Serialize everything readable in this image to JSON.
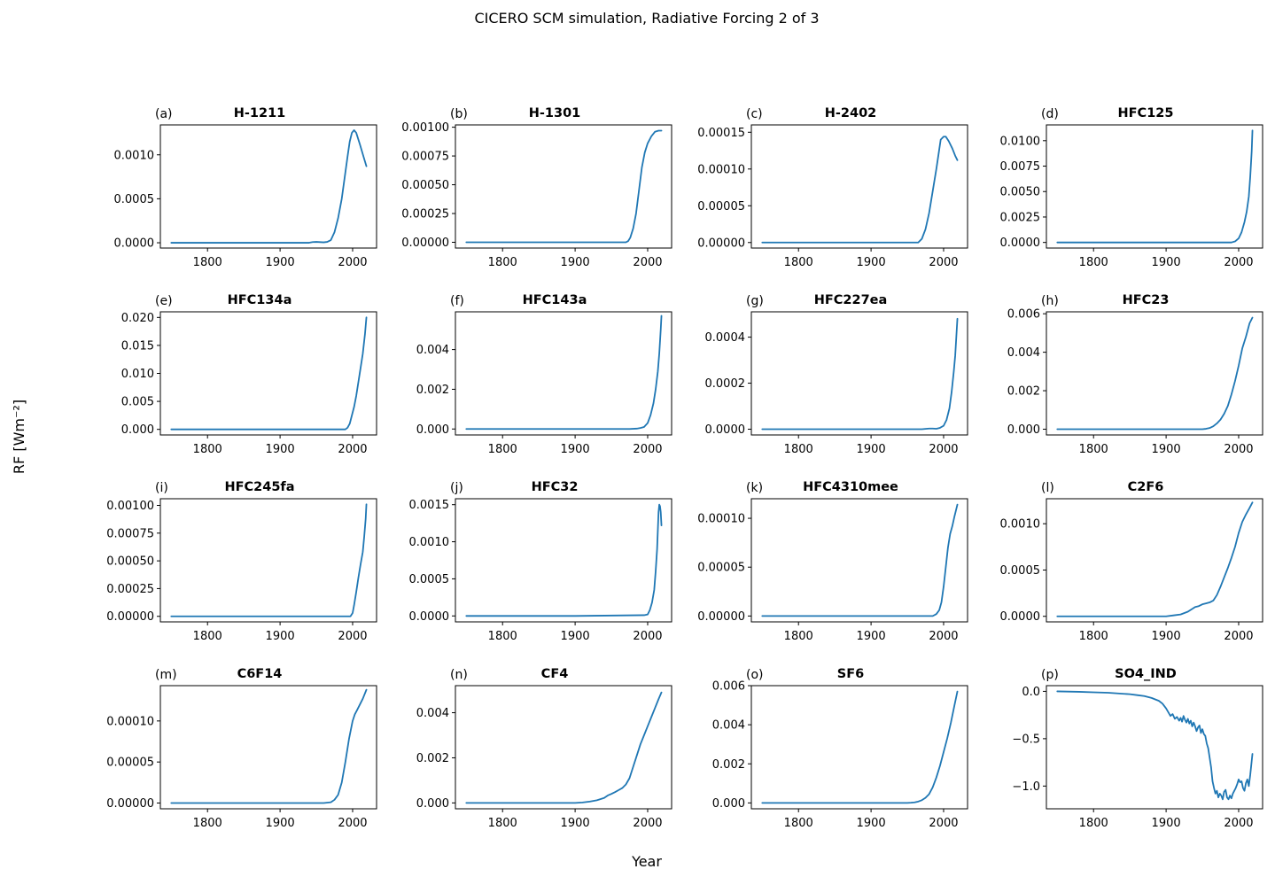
{
  "figure": {
    "title": "CICERO SCM simulation, Radiative Forcing 2 of 3",
    "xlabel": "Year",
    "ylabel": "RF [Wm⁻²]",
    "line_color": "#1f77b4"
  },
  "chart_data": [
    {
      "type": "line",
      "panel": "(a)",
      "title": "H-1211",
      "xlim": [
        1735,
        2033
      ],
      "ylim": [
        -6e-05,
        0.00134
      ],
      "x_ticks": [
        "1800",
        "1900",
        "2000"
      ],
      "y_ticks": [
        0,
        0.0005,
        0.001
      ],
      "y_tick_labels": [
        "0.0000",
        "0.0005",
        "0.0010"
      ],
      "x": [
        1750,
        1940,
        1945,
        1950,
        1960,
        1965,
        1970,
        1975,
        1980,
        1985,
        1990,
        1993,
        1996,
        1999,
        2002,
        2005,
        2010,
        2015,
        2019
      ],
      "y": [
        0,
        0,
        8e-06,
        1e-05,
        5e-06,
        1e-05,
        3e-05,
        0.00012,
        0.00028,
        0.0005,
        0.0008,
        0.00098,
        0.00115,
        0.00125,
        0.00128,
        0.00125,
        0.00112,
        0.00098,
        0.00087
      ]
    },
    {
      "type": "line",
      "panel": "(b)",
      "title": "H-1301",
      "xlim": [
        1735,
        2033
      ],
      "ylim": [
        -5e-05,
        0.00102
      ],
      "x_ticks": [
        "1800",
        "1900",
        "2000"
      ],
      "y_ticks": [
        0,
        0.00025,
        0.0005,
        0.00075,
        0.001
      ],
      "y_tick_labels": [
        "0.00000",
        "0.00025",
        "0.00050",
        "0.00075",
        "0.00100"
      ],
      "x": [
        1750,
        1970,
        1973,
        1976,
        1980,
        1984,
        1988,
        1992,
        1996,
        2000,
        2005,
        2010,
        2015,
        2019
      ],
      "y": [
        0,
        0,
        1e-05,
        4e-05,
        0.00012,
        0.00025,
        0.00045,
        0.00065,
        0.00078,
        0.00086,
        0.00092,
        0.00096,
        0.00097,
        0.00097
      ]
    },
    {
      "type": "line",
      "panel": "(c)",
      "title": "H-2402",
      "xlim": [
        1735,
        2033
      ],
      "ylim": [
        -7.5e-06,
        0.00016
      ],
      "x_ticks": [
        "1800",
        "1900",
        "2000"
      ],
      "y_ticks": [
        0,
        5e-05,
        0.0001,
        0.00015
      ],
      "y_tick_labels": [
        "0.00000",
        "0.00005",
        "0.00010",
        "0.00015"
      ],
      "x": [
        1750,
        1965,
        1970,
        1975,
        1980,
        1985,
        1990,
        1993,
        1996,
        2000,
        2003,
        2007,
        2012,
        2016,
        2019
      ],
      "y": [
        0,
        0,
        5e-06,
        1.8e-05,
        4e-05,
        7e-05,
        0.0001,
        0.00012,
        0.00014,
        0.000144,
        0.000144,
        0.000138,
        0.000128,
        0.000118,
        0.000112
      ]
    },
    {
      "type": "line",
      "panel": "(d)",
      "title": "HFC125",
      "xlim": [
        1735,
        2033
      ],
      "ylim": [
        -0.00055,
        0.01155
      ],
      "x_ticks": [
        "1800",
        "1900",
        "2000"
      ],
      "y_ticks": [
        0,
        0.0025,
        0.005,
        0.0075,
        0.01
      ],
      "y_tick_labels": [
        "0.0000",
        "0.0025",
        "0.0050",
        "0.0075",
        "0.0100"
      ],
      "x": [
        1750,
        1990,
        1995,
        2000,
        2004,
        2008,
        2011,
        2014,
        2016,
        2018,
        2019
      ],
      "y": [
        0,
        0,
        0.0001,
        0.0004,
        0.001,
        0.002,
        0.003,
        0.0045,
        0.0065,
        0.009,
        0.011
      ]
    },
    {
      "type": "line",
      "panel": "(e)",
      "title": "HFC134a",
      "xlim": [
        1735,
        2033
      ],
      "ylim": [
        -0.001,
        0.021
      ],
      "x_ticks": [
        "1800",
        "1900",
        "2000"
      ],
      "y_ticks": [
        0,
        0.005,
        0.01,
        0.015,
        0.02
      ],
      "y_tick_labels": [
        "0.000",
        "0.005",
        "0.010",
        "0.015",
        "0.020"
      ],
      "x": [
        1750,
        1990,
        1993,
        1996,
        1999,
        2002,
        2005,
        2008,
        2011,
        2014,
        2017,
        2019
      ],
      "y": [
        0,
        0,
        0.0003,
        0.001,
        0.0025,
        0.004,
        0.006,
        0.0085,
        0.011,
        0.0135,
        0.017,
        0.02
      ]
    },
    {
      "type": "line",
      "panel": "(f)",
      "title": "HFC143a",
      "xlim": [
        1735,
        2033
      ],
      "ylim": [
        -0.0003,
        0.0059
      ],
      "x_ticks": [
        "1800",
        "1900",
        "2000"
      ],
      "y_ticks": [
        0,
        0.002,
        0.004
      ],
      "y_tick_labels": [
        "0.000",
        "0.002",
        "0.004"
      ],
      "x": [
        1750,
        1975,
        1985,
        1990,
        1995,
        2000,
        2004,
        2008,
        2011,
        2014,
        2016,
        2018,
        2019
      ],
      "y": [
        0,
        0,
        2e-05,
        5e-05,
        0.0001,
        0.0003,
        0.0007,
        0.0013,
        0.002,
        0.0029,
        0.0038,
        0.005,
        0.0057
      ]
    },
    {
      "type": "line",
      "panel": "(g)",
      "title": "HFC227ea",
      "xlim": [
        1735,
        2033
      ],
      "ylim": [
        -2.5e-05,
        0.00051
      ],
      "x_ticks": [
        "1800",
        "1900",
        "2000"
      ],
      "y_ticks": [
        0,
        0.0002,
        0.0004
      ],
      "y_tick_labels": [
        "0.0000",
        "0.0002",
        "0.0004"
      ],
      "x": [
        1750,
        1970,
        1980,
        1985,
        1990,
        1995,
        2000,
        2004,
        2008,
        2011,
        2014,
        2016,
        2019
      ],
      "y": [
        0,
        0,
        3e-06,
        3e-06,
        2e-06,
        6e-06,
        1.5e-05,
        4e-05,
        9e-05,
        0.00016,
        0.00025,
        0.00032,
        0.00048
      ]
    },
    {
      "type": "line",
      "panel": "(h)",
      "title": "HFC23",
      "xlim": [
        1735,
        2033
      ],
      "ylim": [
        -0.0003,
        0.0061
      ],
      "x_ticks": [
        "1800",
        "1900",
        "2000"
      ],
      "y_ticks": [
        0,
        0.002,
        0.004,
        0.006
      ],
      "y_tick_labels": [
        "0.000",
        "0.002",
        "0.004",
        "0.006"
      ],
      "x": [
        1750,
        1950,
        1955,
        1960,
        1965,
        1970,
        1975,
        1980,
        1985,
        1990,
        1995,
        2000,
        2005,
        2010,
        2015,
        2019
      ],
      "y": [
        0,
        0,
        2e-05,
        6e-05,
        0.00015,
        0.0003,
        0.0005,
        0.0008,
        0.0012,
        0.0018,
        0.0025,
        0.0033,
        0.0042,
        0.0048,
        0.0055,
        0.0058
      ]
    },
    {
      "type": "line",
      "panel": "(i)",
      "title": "HFC245fa",
      "xlim": [
        1735,
        2033
      ],
      "ylim": [
        -5e-05,
        0.00106
      ],
      "x_ticks": [
        "1800",
        "1900",
        "2000"
      ],
      "y_ticks": [
        0,
        0.00025,
        0.0005,
        0.00075,
        0.001
      ],
      "y_tick_labels": [
        "0.00000",
        "0.00025",
        "0.00050",
        "0.00075",
        "0.00100"
      ],
      "x": [
        1750,
        1997,
        2000,
        2002,
        2005,
        2008,
        2011,
        2014,
        2016,
        2018,
        2019
      ],
      "y": [
        0,
        0,
        3e-05,
        0.0001,
        0.00022,
        0.00035,
        0.00047,
        0.00058,
        0.00072,
        0.00088,
        0.00101
      ]
    },
    {
      "type": "line",
      "panel": "(j)",
      "title": "HFC32",
      "xlim": [
        1735,
        2033
      ],
      "ylim": [
        -8e-05,
        0.00158
      ],
      "x_ticks": [
        "1800",
        "1900",
        "2000"
      ],
      "y_ticks": [
        0,
        0.0005,
        0.001,
        0.0015
      ],
      "y_tick_labels": [
        "0.0000",
        "0.0005",
        "0.0010",
        "0.0015"
      ],
      "x": [
        1750,
        1900,
        1995,
        2000,
        2003,
        2006,
        2009,
        2011,
        2013,
        2014,
        2015,
        2016,
        2017,
        2018,
        2019
      ],
      "y": [
        0,
        0,
        1e-05,
        2e-05,
        8e-05,
        0.00018,
        0.00035,
        0.0006,
        0.0009,
        0.00115,
        0.0014,
        0.0015,
        0.00148,
        0.0014,
        0.00122
      ]
    },
    {
      "type": "line",
      "panel": "(k)",
      "title": "HFC4310mee",
      "xlim": [
        1735,
        2033
      ],
      "ylim": [
        -6e-06,
        0.00012
      ],
      "x_ticks": [
        "1800",
        "1900",
        "2000"
      ],
      "y_ticks": [
        0,
        5e-05,
        0.0001
      ],
      "y_tick_labels": [
        "0.00000",
        "0.00005",
        "0.00010"
      ],
      "x": [
        1750,
        1985,
        1990,
        1994,
        1997,
        2000,
        2003,
        2006,
        2009,
        2012,
        2015,
        2019
      ],
      "y": [
        0,
        0,
        2e-06,
        6e-06,
        1.4e-05,
        3e-05,
        5e-05,
        7e-05,
        8.4e-05,
        9.2e-05,
        0.000102,
        0.000114
      ]
    },
    {
      "type": "line",
      "panel": "(l)",
      "title": "C2F6",
      "xlim": [
        1735,
        2033
      ],
      "ylim": [
        -6e-05,
        0.00127
      ],
      "x_ticks": [
        "1800",
        "1900",
        "2000"
      ],
      "y_ticks": [
        0,
        0.0005,
        0.001
      ],
      "y_tick_labels": [
        "0.0000",
        "0.0005",
        "0.0010"
      ],
      "x": [
        1750,
        1900,
        1910,
        1920,
        1930,
        1940,
        1945,
        1950,
        1955,
        1960,
        1965,
        1970,
        1975,
        1980,
        1985,
        1990,
        1995,
        2000,
        2005,
        2010,
        2015,
        2019
      ],
      "y": [
        0,
        0,
        1e-05,
        2e-05,
        5e-05,
        0.0001,
        0.00011,
        0.00013,
        0.00014,
        0.00015,
        0.00017,
        0.00023,
        0.00032,
        0.00042,
        0.00052,
        0.00063,
        0.00075,
        0.0009,
        0.00102,
        0.0011,
        0.00117,
        0.00123
      ]
    },
    {
      "type": "line",
      "panel": "(m)",
      "title": "C6F14",
      "xlim": [
        1735,
        2033
      ],
      "ylim": [
        -7e-06,
        0.000143
      ],
      "x_ticks": [
        "1800",
        "1900",
        "2000"
      ],
      "y_ticks": [
        0,
        5e-05,
        0.0001
      ],
      "y_tick_labels": [
        "0.00000",
        "0.00005",
        "0.00010"
      ],
      "x": [
        1750,
        1960,
        1970,
        1975,
        1980,
        1985,
        1990,
        1995,
        2000,
        2003,
        2006,
        2010,
        2014,
        2019
      ],
      "y": [
        0,
        0,
        1e-06,
        4e-06,
        1e-05,
        2.5e-05,
        5e-05,
        7.8e-05,
        0.0001,
        0.000108,
        0.000113,
        0.00012,
        0.000127,
        0.000138
      ]
    },
    {
      "type": "line",
      "panel": "(n)",
      "title": "CF4",
      "xlim": [
        1735,
        2033
      ],
      "ylim": [
        -0.00026,
        0.0052
      ],
      "x_ticks": [
        "1800",
        "1900",
        "2000"
      ],
      "y_ticks": [
        0,
        0.002,
        0.004
      ],
      "y_tick_labels": [
        "0.000",
        "0.002",
        "0.004"
      ],
      "x": [
        1750,
        1900,
        1910,
        1920,
        1930,
        1940,
        1945,
        1950,
        1955,
        1960,
        1965,
        1970,
        1975,
        1980,
        1985,
        1990,
        1995,
        2000,
        2005,
        2010,
        2015,
        2019
      ],
      "y": [
        0,
        0,
        2e-05,
        6e-05,
        0.00012,
        0.00022,
        0.00033,
        0.0004,
        0.00048,
        0.00057,
        0.00066,
        0.00082,
        0.0011,
        0.0016,
        0.0021,
        0.0026,
        0.003,
        0.0034,
        0.0038,
        0.0042,
        0.0046,
        0.0049
      ]
    },
    {
      "type": "line",
      "panel": "(o)",
      "title": "SF6",
      "xlim": [
        1735,
        2033
      ],
      "ylim": [
        -0.0003,
        0.006
      ],
      "x_ticks": [
        "1800",
        "1900",
        "2000"
      ],
      "y_ticks": [
        0,
        0.002,
        0.004,
        0.006
      ],
      "y_tick_labels": [
        "0.000",
        "0.002",
        "0.004",
        "0.006"
      ],
      "x": [
        1750,
        1950,
        1955,
        1960,
        1965,
        1970,
        1975,
        1980,
        1985,
        1990,
        1995,
        2000,
        2005,
        2010,
        2015,
        2019
      ],
      "y": [
        0,
        0,
        1e-05,
        3e-05,
        7e-05,
        0.00014,
        0.00026,
        0.00045,
        0.0008,
        0.0013,
        0.0019,
        0.0026,
        0.0033,
        0.0041,
        0.005,
        0.0057
      ]
    },
    {
      "type": "line",
      "panel": "(p)",
      "title": "SO4_IND",
      "xlim": [
        1735,
        2033
      ],
      "ylim": [
        -1.24,
        0.06
      ],
      "x_ticks": [
        "1800",
        "1900",
        "2000"
      ],
      "y_ticks": [
        0,
        -0.5,
        -1.0
      ],
      "y_tick_labels": [
        "0.0",
        "−0.5",
        "−1.0"
      ],
      "x": [
        1750,
        1780,
        1800,
        1820,
        1840,
        1850,
        1860,
        1870,
        1880,
        1885,
        1890,
        1895,
        1900,
        1903,
        1906,
        1909,
        1912,
        1915,
        1918,
        1920,
        1922,
        1924,
        1926,
        1928,
        1930,
        1932,
        1934,
        1936,
        1938,
        1940,
        1942,
        1944,
        1946,
        1948,
        1950,
        1952,
        1954,
        1956,
        1958,
        1960,
        1962,
        1964,
        1966,
        1968,
        1970,
        1972,
        1974,
        1976,
        1978,
        1980,
        1982,
        1984,
        1986,
        1988,
        1990,
        1992,
        1994,
        1996,
        1998,
        2000,
        2002,
        2004,
        2006,
        2008,
        2010,
        2012,
        2014,
        2016,
        2019
      ],
      "y": [
        0,
        -0.005,
        -0.01,
        -0.015,
        -0.025,
        -0.03,
        -0.04,
        -0.05,
        -0.07,
        -0.085,
        -0.1,
        -0.13,
        -0.18,
        -0.22,
        -0.26,
        -0.24,
        -0.29,
        -0.27,
        -0.31,
        -0.28,
        -0.32,
        -0.26,
        -0.3,
        -0.33,
        -0.29,
        -0.34,
        -0.31,
        -0.37,
        -0.33,
        -0.37,
        -0.42,
        -0.38,
        -0.36,
        -0.44,
        -0.4,
        -0.45,
        -0.47,
        -0.55,
        -0.6,
        -0.7,
        -0.8,
        -0.95,
        -1.02,
        -1.08,
        -1.05,
        -1.12,
        -1.08,
        -1.1,
        -1.14,
        -1.06,
        -1.04,
        -1.12,
        -1.14,
        -1.1,
        -1.13,
        -1.08,
        -1.05,
        -1.02,
        -0.98,
        -0.93,
        -0.96,
        -0.95,
        -1.02,
        -1.05,
        -0.97,
        -0.93,
        -1.0,
        -0.88,
        -0.66
      ]
    }
  ]
}
